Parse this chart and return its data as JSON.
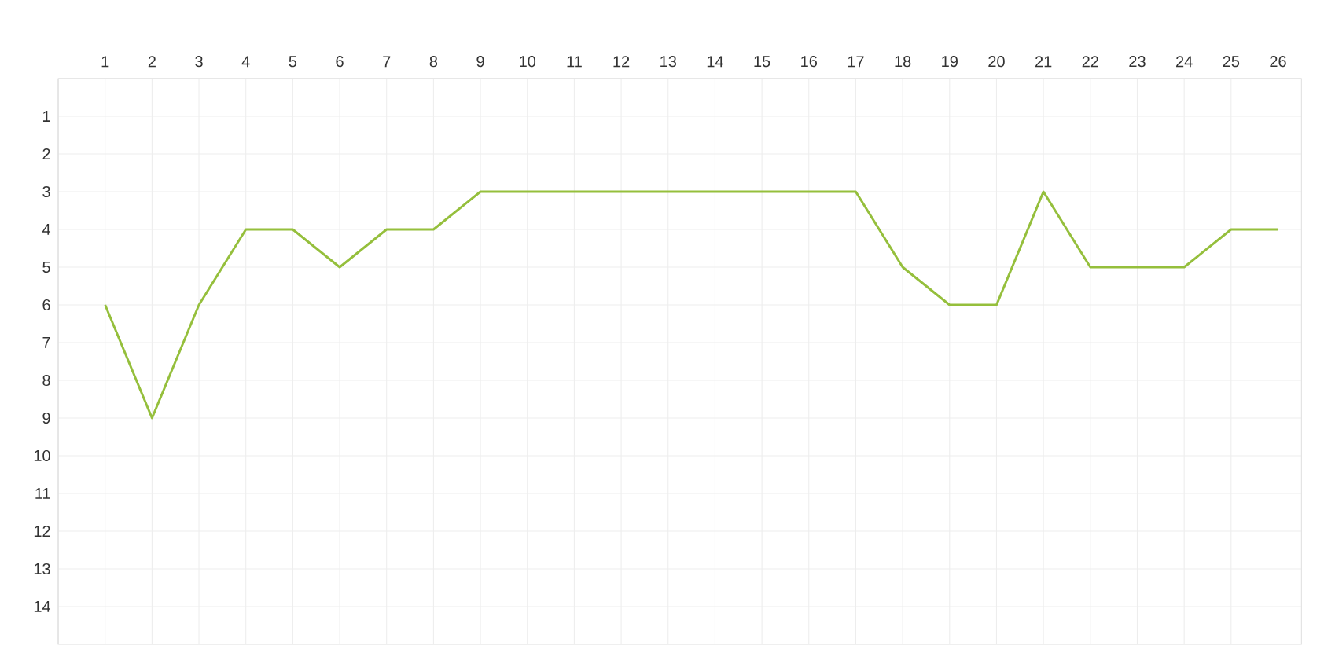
{
  "chart_data": {
    "type": "line",
    "x": [
      1,
      2,
      3,
      4,
      5,
      6,
      7,
      8,
      9,
      10,
      11,
      12,
      13,
      14,
      15,
      16,
      17,
      18,
      19,
      20,
      21,
      22,
      23,
      24,
      25,
      26
    ],
    "values": [
      6,
      9,
      6,
      4,
      4,
      5,
      4,
      4,
      3,
      3,
      3,
      3,
      3,
      3,
      3,
      3,
      3,
      5,
      6,
      6,
      3,
      5,
      5,
      5,
      4,
      4
    ],
    "color": "#95bf3c",
    "xlim": [
      0,
      26.5
    ],
    "xticks": [
      1,
      2,
      3,
      4,
      5,
      6,
      7,
      8,
      9,
      10,
      11,
      12,
      13,
      14,
      15,
      16,
      17,
      18,
      19,
      20,
      21,
      22,
      23,
      24,
      25,
      26
    ],
    "ylim": [
      15,
      0
    ],
    "yticks": [
      1,
      2,
      3,
      4,
      5,
      6,
      7,
      8,
      9,
      10,
      11,
      12,
      13,
      14
    ],
    "grid": true,
    "marker": "none",
    "line_style": "solid"
  }
}
